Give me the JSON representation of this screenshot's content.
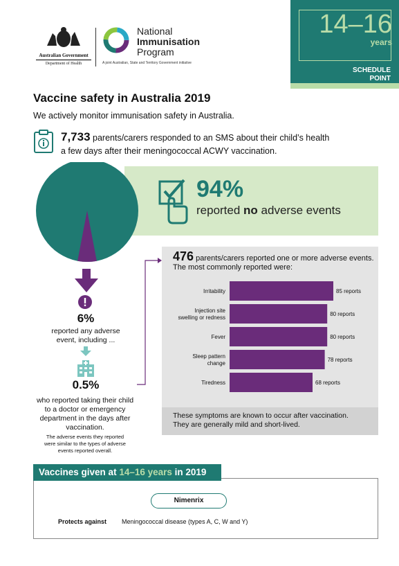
{
  "header": {
    "gov_line1": "Australian Government",
    "gov_line2": "Department of Health",
    "nip_line1": "National",
    "nip_line2": "Immunisation",
    "nip_line3": "Program",
    "nip_sub": "A joint Australian, State and Territory Government initiative"
  },
  "badge": {
    "age": "14–16",
    "unit": "years",
    "label_line1": "SCHEDULE",
    "label_line2": "POINT"
  },
  "title": "Vaccine safety in Australia 2019",
  "subtitle": "We actively monitor immunisation safety in Australia.",
  "sms": {
    "count": "7,733",
    "text1": " parents/carers responded to an SMS about their child’s health",
    "text2": "a few days after their meningococcal ACWY vaccination."
  },
  "no_adverse": {
    "percent": "94%",
    "text_pre": "reported ",
    "text_bold": "no",
    "text_post": " adverse events",
    "share": 0.94
  },
  "adverse": {
    "percent": "6%",
    "line1": "reported any adverse",
    "line2": "event, including ..."
  },
  "doctor": {
    "percent": "0.5%",
    "line1": "who reported taking their child",
    "line2": "to a doctor or emergency",
    "line3": "department in the days after",
    "line4": "vaccination."
  },
  "note": {
    "line1": "The adverse events they reported",
    "line2": "were similar to the types of adverse",
    "line3": "events reported overall."
  },
  "reported": {
    "count": "476",
    "text1": " parents/carers reported one or more adverse events.",
    "text2": "The most commonly reported were:",
    "footer1": "These symptoms are known to occur after vaccination.",
    "footer2": "They are generally mild and short-lived."
  },
  "chart_data": {
    "type": "bar",
    "orientation": "horizontal",
    "categories": [
      "Irritability",
      "Injection site swelling or redness",
      "Fever",
      "Sleep pattern change",
      "Tiredness"
    ],
    "category_lines": [
      [
        "Irritability"
      ],
      [
        "Injection site",
        "swelling or redness"
      ],
      [
        "Fever"
      ],
      [
        "Sleep pattern",
        "change"
      ],
      [
        "Tiredness"
      ]
    ],
    "values": [
      85,
      80,
      80,
      78,
      68
    ],
    "value_labels": [
      "85 reports",
      "80 reports",
      "80 reports",
      "78 reports",
      "68 reports"
    ],
    "bar_color": "#6a2c7a"
  },
  "vaccines": {
    "heading_pre": "Vaccines given at ",
    "heading_hl": "14–16 years",
    "heading_post": " in 2019",
    "name": "Nimenrix",
    "protects_label": "Protects against",
    "protects_value": "Meningococcal disease (types A, C, W and Y)"
  },
  "colors": {
    "teal": "#1f7a72",
    "light_green": "#d6e9c8",
    "purple": "#6a2c7a",
    "grey_panel": "#e4e4e4"
  }
}
